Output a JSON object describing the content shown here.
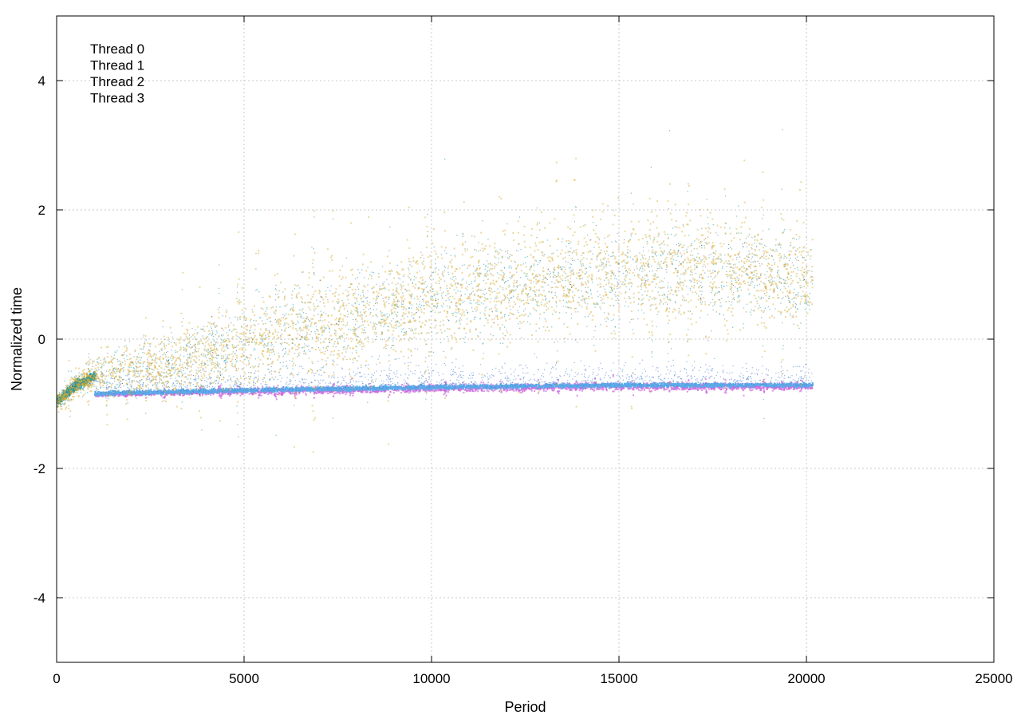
{
  "chart_data": {
    "type": "scatter",
    "title": "",
    "xlabel": "Period",
    "ylabel": "Normalized time",
    "xlim": [
      0,
      25000
    ],
    "ylim": [
      -5,
      5
    ],
    "x_ticks": [
      0,
      5000,
      10000,
      15000,
      20000,
      25000
    ],
    "y_ticks": [
      -4,
      -2,
      0,
      2,
      4
    ],
    "grid": true,
    "legend_position": "top-left",
    "series": [
      {
        "name": "Thread 0",
        "color": "#1a1a66",
        "description_points": [
          [
            0,
            -0.95
          ],
          [
            500,
            -0.7
          ],
          [
            1000,
            -0.55
          ],
          [
            3000,
            -0.4
          ],
          [
            5000,
            -0.05
          ],
          [
            8000,
            0.35
          ],
          [
            10000,
            0.6
          ],
          [
            12000,
            0.85
          ],
          [
            15000,
            1.0
          ],
          [
            18000,
            1.05
          ],
          [
            20100,
            0.9
          ]
        ]
      },
      {
        "name": "Thread 1",
        "color": "#cc66dd",
        "description_points": [
          [
            1000,
            -0.85
          ],
          [
            5000,
            -0.8
          ],
          [
            10000,
            -0.75
          ],
          [
            15000,
            -0.72
          ],
          [
            20100,
            -0.72
          ]
        ]
      },
      {
        "name": "Thread 2",
        "color": "#2299aa",
        "description_points": [
          [
            0,
            -0.95
          ],
          [
            500,
            -0.7
          ],
          [
            1000,
            -0.55
          ],
          [
            3000,
            -0.4
          ],
          [
            5000,
            -0.05
          ],
          [
            8000,
            0.35
          ],
          [
            10000,
            0.6
          ],
          [
            12000,
            0.85
          ],
          [
            15000,
            1.0
          ],
          [
            18000,
            1.05
          ],
          [
            20100,
            0.9
          ]
        ]
      },
      {
        "name": "Thread 3",
        "color": "#d4aa33",
        "description_points": [
          [
            0,
            -0.95
          ],
          [
            500,
            -0.7
          ],
          [
            1000,
            -0.55
          ],
          [
            3000,
            -0.4
          ],
          [
            5000,
            -0.05
          ],
          [
            8000,
            0.4
          ],
          [
            10000,
            0.65
          ],
          [
            12000,
            0.9
          ],
          [
            15000,
            1.05
          ],
          [
            18000,
            1.1
          ],
          [
            20100,
            0.95
          ]
        ]
      }
    ],
    "x_max_data": 20150
  }
}
